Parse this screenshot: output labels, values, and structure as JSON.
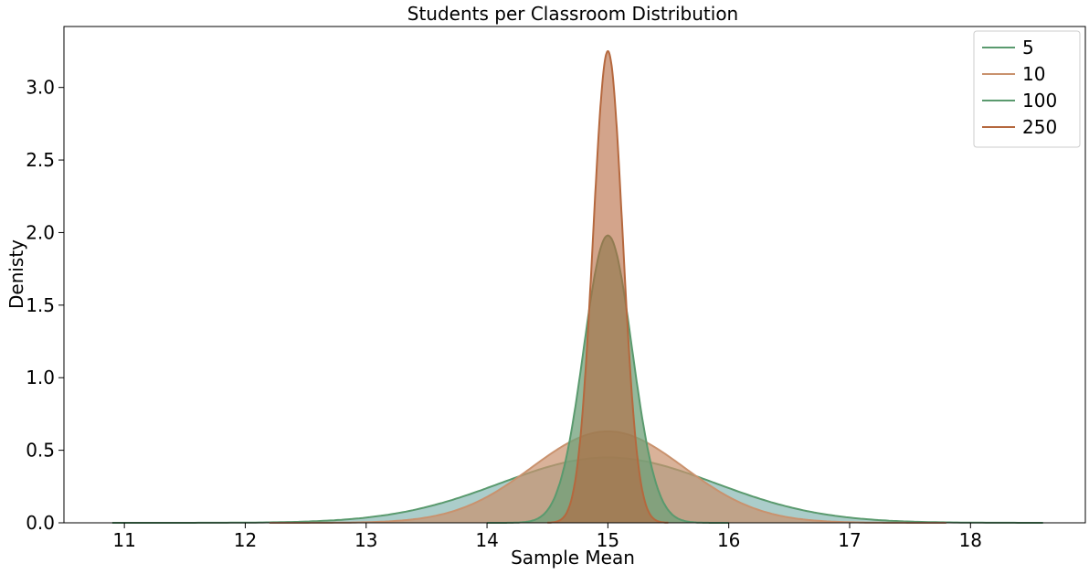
{
  "chart_data": {
    "type": "area",
    "title": "Students per Classroom Distribution",
    "xlabel": "Sample Mean",
    "ylabel": "Denisty",
    "xlim": [
      10.5,
      18.95
    ],
    "ylim": [
      0,
      3.42
    ],
    "x_ticks": [
      "11",
      "12",
      "13",
      "14",
      "15",
      "16",
      "17",
      "18"
    ],
    "y_ticks": [
      "0.0",
      "0.5",
      "1.0",
      "1.5",
      "2.0",
      "2.5",
      "3.0"
    ],
    "grid": false,
    "legend_position": "top-right",
    "center": 15,
    "series": [
      {
        "name": "5",
        "peak_density": 0.45,
        "sd": 0.89,
        "range": [
          10.9,
          18.6
        ],
        "line_color": "#5a9a6e",
        "fill_color": "#8fbcb8",
        "fill_opacity": 0.75
      },
      {
        "name": "10",
        "peak_density": 0.63,
        "sd": 0.63,
        "range": [
          12.2,
          17.8
        ],
        "line_color": "#c9926e",
        "fill_color": "#c9926e",
        "fill_opacity": 0.7
      },
      {
        "name": "100",
        "peak_density": 1.98,
        "sd": 0.2,
        "range": [
          14.0,
          16.0
        ],
        "line_color": "#5a9a6e",
        "fill_color": "#6fa07a",
        "fill_opacity": 0.75
      },
      {
        "name": "250",
        "peak_density": 3.25,
        "sd": 0.123,
        "range": [
          14.5,
          15.5
        ],
        "line_color": "#b5683e",
        "fill_color": "#b5683e",
        "fill_opacity": 0.6
      }
    ]
  }
}
